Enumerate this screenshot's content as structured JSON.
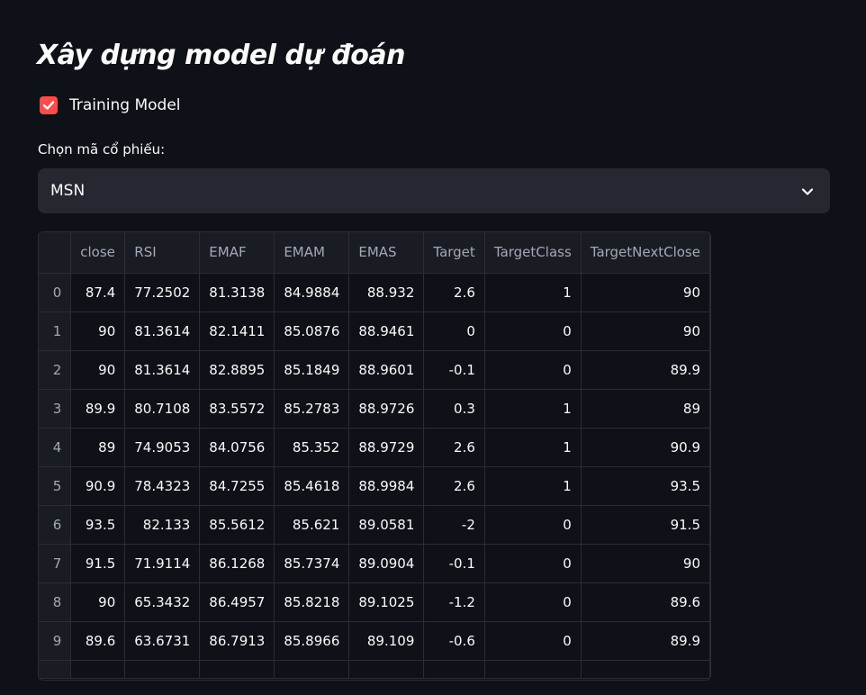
{
  "page": {
    "title": "Xây dựng model dự đoán"
  },
  "training_checkbox": {
    "label": "Training Model",
    "checked": true
  },
  "ticker_select": {
    "label": "Chọn mã cổ phiếu:",
    "value": "MSN"
  },
  "table": {
    "columns": [
      "",
      "close",
      "RSI",
      "EMAF",
      "EMAM",
      "EMAS",
      "Target",
      "TargetClass",
      "TargetNextClose"
    ],
    "rows": [
      [
        "0",
        "87.4",
        "77.2502",
        "81.3138",
        "84.9884",
        "88.932",
        "2.6",
        "1",
        "90"
      ],
      [
        "1",
        "90",
        "81.3614",
        "82.1411",
        "85.0876",
        "88.9461",
        "0",
        "0",
        "90"
      ],
      [
        "2",
        "90",
        "81.3614",
        "82.8895",
        "85.1849",
        "88.9601",
        "-0.1",
        "0",
        "89.9"
      ],
      [
        "3",
        "89.9",
        "80.7108",
        "83.5572",
        "85.2783",
        "88.9726",
        "0.3",
        "1",
        "89"
      ],
      [
        "4",
        "89",
        "74.9053",
        "84.0756",
        "85.352",
        "88.9729",
        "2.6",
        "1",
        "90.9"
      ],
      [
        "5",
        "90.9",
        "78.4323",
        "84.7255",
        "85.4618",
        "88.9984",
        "2.6",
        "1",
        "93.5"
      ],
      [
        "6",
        "93.5",
        "82.133",
        "85.5612",
        "85.621",
        "89.0581",
        "-2",
        "0",
        "91.5"
      ],
      [
        "7",
        "91.5",
        "71.9114",
        "86.1268",
        "85.7374",
        "89.0904",
        "-0.1",
        "0",
        "90"
      ],
      [
        "8",
        "90",
        "65.3432",
        "86.4957",
        "85.8218",
        "89.1025",
        "-1.2",
        "0",
        "89.6"
      ],
      [
        "9",
        "89.6",
        "63.6731",
        "86.7913",
        "85.8966",
        "89.109",
        "-0.6",
        "0",
        "89.9"
      ]
    ]
  },
  "colors": {
    "background": "#0e1117",
    "accent": "#ff4b4b",
    "select_bg": "#262730",
    "grid": "#2b2d36"
  }
}
